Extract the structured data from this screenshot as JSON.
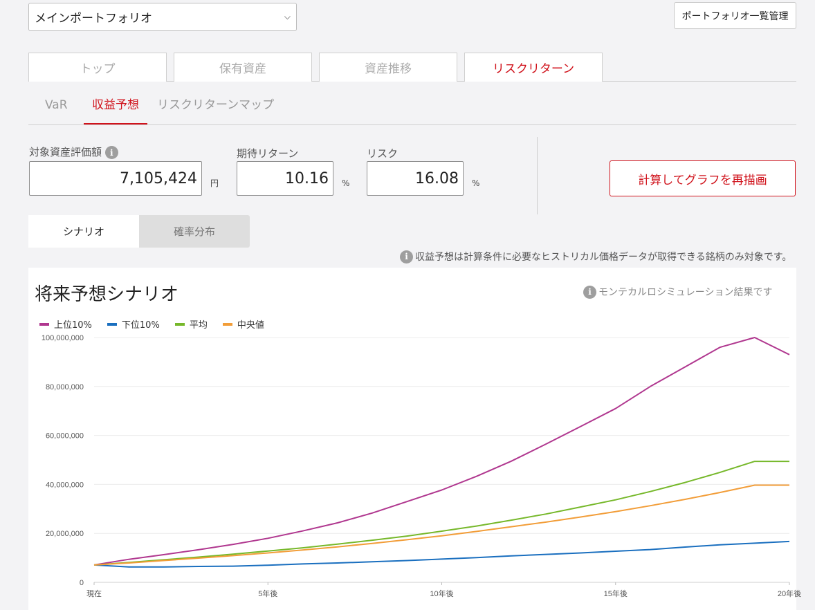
{
  "header": {
    "portfolio_select": "メインポートフォリオ",
    "manage_button": "ポートフォリオ一覧管理"
  },
  "main_tabs": [
    {
      "label": "トップ",
      "active": false
    },
    {
      "label": "保有資産",
      "active": false
    },
    {
      "label": "資産推移",
      "active": false
    },
    {
      "label": "リスクリターン",
      "active": true
    }
  ],
  "sub_tabs": [
    {
      "label": "VaR",
      "active": false
    },
    {
      "label": "収益予想",
      "active": true
    },
    {
      "label": "リスクリターンマップ",
      "active": false
    }
  ],
  "form": {
    "asset_value_label": "対象資産評価額",
    "asset_value": "7,105,424",
    "asset_unit": "円",
    "expected_return_label": "期待リターン",
    "expected_return": "10.16",
    "return_unit": "%",
    "risk_label": "リスク",
    "risk": "16.08",
    "risk_unit": "%",
    "recalc_button": "計算してグラフを再描画"
  },
  "view_toggle": {
    "scenario": "シナリオ",
    "distribution": "確率分布"
  },
  "notes": {
    "data_note": "収益予想は計算条件に必要なヒストリカル価格データが取得できる銘柄のみ対象です。",
    "simulation_note": "モンテカルロシミュレーション結果です"
  },
  "colors": {
    "accent": "#d0121b"
  },
  "chart_data": {
    "type": "line",
    "title": "将来予想シナリオ",
    "x": [
      0,
      1,
      2,
      3,
      4,
      5,
      6,
      7,
      8,
      9,
      10,
      11,
      12,
      13,
      14,
      15,
      16,
      17,
      18,
      19,
      20
    ],
    "x_tick_labels": [
      {
        "x": 0,
        "label": "現在"
      },
      {
        "x": 5,
        "label": "5年後"
      },
      {
        "x": 10,
        "label": "10年後"
      },
      {
        "x": 15,
        "label": "15年後"
      },
      {
        "x": 20,
        "label": "20年後"
      }
    ],
    "ylim": [
      0,
      100000000
    ],
    "y_ticks": [
      0,
      20000000,
      40000000,
      60000000,
      80000000,
      100000000
    ],
    "y_tick_labels": [
      "0",
      "20,000,000",
      "40,000,000",
      "60,000,000",
      "80,000,000",
      "100,000,000"
    ],
    "grid": true,
    "legend_position": "top-left",
    "series": [
      {
        "name": "上位10%",
        "color": "#b0378f",
        "values": [
          7100000,
          9400000,
          11300000,
          13300000,
          15500000,
          18000000,
          21000000,
          24300000,
          28300000,
          33000000,
          37700000,
          43300000,
          49500000,
          56500000,
          63700000,
          71000000,
          80000000,
          88000000,
          96000000,
          100000000,
          93000000
        ]
      },
      {
        "name": "下位10%",
        "color": "#1a6fbf",
        "values": [
          7100000,
          6300000,
          6300000,
          6500000,
          6600000,
          7000000,
          7500000,
          7900000,
          8400000,
          8900000,
          9500000,
          10100000,
          10800000,
          11400000,
          12000000,
          12700000,
          13400000,
          14400000,
          15300000,
          16000000,
          16700000
        ]
      },
      {
        "name": "平均",
        "color": "#76b82a",
        "values": [
          7100000,
          8100000,
          9200000,
          10300000,
          11500000,
          12800000,
          14100000,
          15600000,
          17200000,
          18900000,
          20900000,
          23000000,
          25400000,
          27900000,
          30800000,
          33700000,
          37100000,
          40800000,
          44900000,
          49400000,
          49400000
        ]
      },
      {
        "name": "中央値",
        "color": "#f29d38",
        "values": [
          7100000,
          7900000,
          8900000,
          9900000,
          10900000,
          12000000,
          13200000,
          14500000,
          15900000,
          17400000,
          19000000,
          20800000,
          22700000,
          24600000,
          26700000,
          28900000,
          31300000,
          33900000,
          36700000,
          39700000,
          39700000
        ]
      }
    ]
  }
}
